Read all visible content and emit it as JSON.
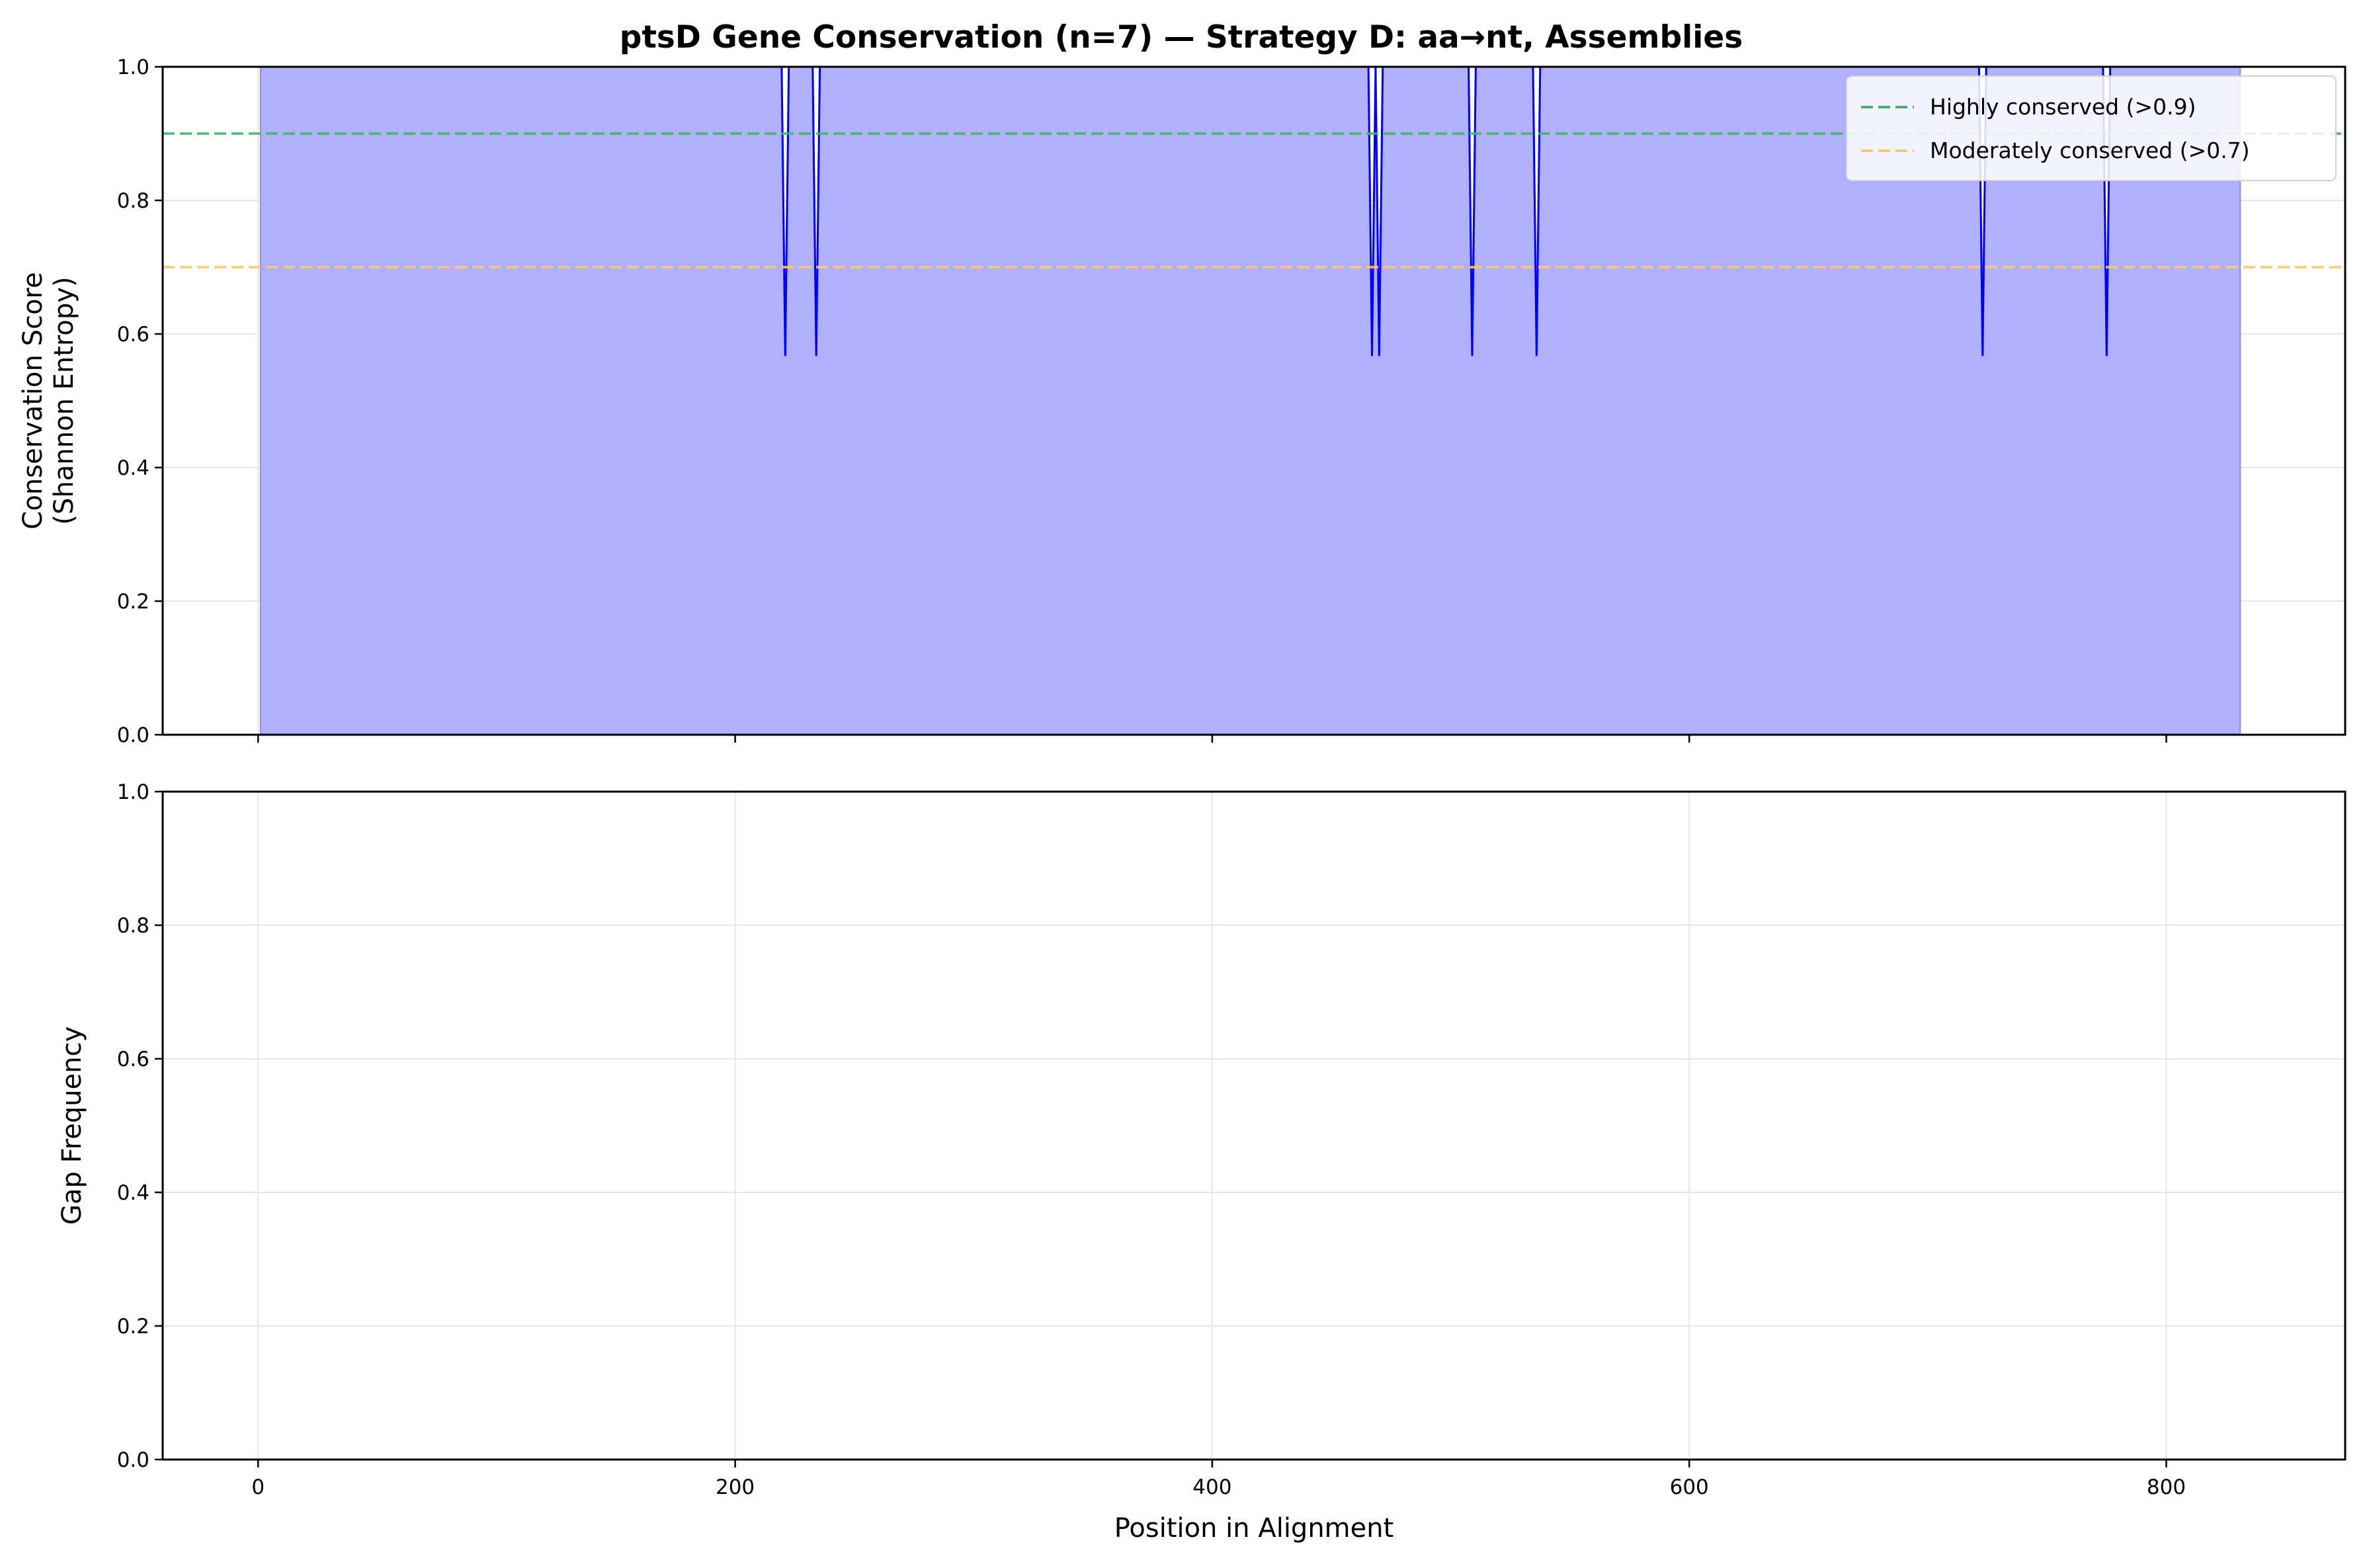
{
  "chart_data": [
    {
      "type": "area",
      "title": "ptsD Gene Conservation (n=7) — Strategy D: aa→nt, Assemblies",
      "xlabel": "",
      "ylabel_lines": [
        "Conservation Score",
        "(Shannon Entropy)"
      ],
      "xlim": [
        -40,
        875
      ],
      "ylim": [
        0,
        1
      ],
      "yticks": [
        0.0,
        0.2,
        0.4,
        0.6,
        0.8,
        1.0
      ],
      "ytick_labels": [
        "0.0",
        "0.2",
        "0.4",
        "0.6",
        "0.8",
        "1.0"
      ],
      "xticks": [
        0,
        200,
        400,
        600,
        800
      ],
      "grid": true,
      "legend_position": "top-right",
      "series": {
        "fill_color": "#b0b0fc",
        "line_color": "#0000ff",
        "x_start": 1,
        "x_end": 831,
        "baseline_value": 1.0,
        "dip_value": 0.567,
        "dips": [
          221,
          234,
          467,
          470,
          509,
          536,
          723,
          775
        ]
      },
      "reference_lines": [
        {
          "label": "Highly conserved (>0.9)",
          "value": 0.9,
          "color": "#4caf6e",
          "style": "dashed"
        },
        {
          "label": "Moderately conserved (>0.7)",
          "value": 0.7,
          "color": "#ffc773",
          "style": "dashed"
        }
      ]
    },
    {
      "type": "line",
      "title": "",
      "xlabel": "Position in Alignment",
      "ylabel": "Gap Frequency",
      "xlim": [
        -40,
        875
      ],
      "ylim": [
        0,
        1
      ],
      "yticks": [
        0.0,
        0.2,
        0.4,
        0.6,
        0.8,
        1.0
      ],
      "ytick_labels": [
        "0.0",
        "0.2",
        "0.4",
        "0.6",
        "0.8",
        "1.0"
      ],
      "xticks": [
        0,
        200,
        400,
        600,
        800
      ],
      "xtick_labels": [
        "0",
        "200",
        "400",
        "600",
        "800"
      ],
      "grid": true,
      "series": {
        "line_color": "#000000",
        "x_start": 1,
        "x_end": 831,
        "value": 0.0
      }
    }
  ]
}
